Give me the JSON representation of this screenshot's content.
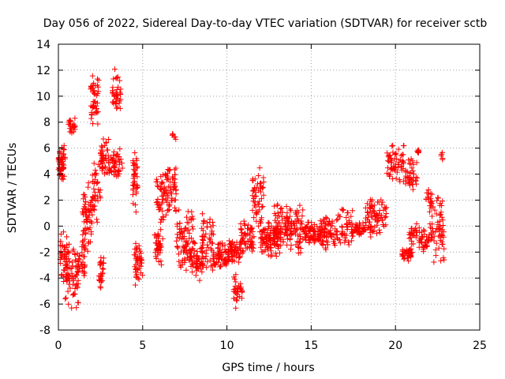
{
  "chart_data": {
    "type": "scatter",
    "title": "Day 056 of 2022, Sidereal Day-to-day VTEC variation (SDTVAR) for receiver sctb",
    "xlabel": "GPS time / hours",
    "ylabel": "SDTVAR / TECUs",
    "xlim": [
      0,
      25
    ],
    "ylim": [
      -8,
      14
    ],
    "xticks": [
      0,
      5,
      10,
      15,
      20,
      25
    ],
    "yticks": [
      -8,
      -6,
      -4,
      -2,
      0,
      2,
      4,
      6,
      8,
      10,
      12,
      14
    ],
    "grid": true,
    "grid_style": "dotted",
    "marker": "+",
    "color": "#ff0000",
    "clusters": [
      {
        "x_range": [
          0.0,
          0.4
        ],
        "y_range": [
          3.5,
          6.3
        ],
        "n": 60
      },
      {
        "x_range": [
          0.1,
          0.5
        ],
        "y_range": [
          -5.0,
          0.0
        ],
        "n": 40
      },
      {
        "x_range": [
          0.4,
          1.2
        ],
        "y_range": [
          -6.5,
          -1.0
        ],
        "n": 70
      },
      {
        "x_range": [
          0.6,
          1.0
        ],
        "y_range": [
          7.0,
          8.5
        ],
        "n": 25
      },
      {
        "x_range": [
          1.0,
          1.6
        ],
        "y_range": [
          -4.0,
          -1.0
        ],
        "n": 35
      },
      {
        "x_range": [
          1.4,
          2.0
        ],
        "y_range": [
          -2.0,
          3.5
        ],
        "n": 60
      },
      {
        "x_range": [
          1.9,
          2.4
        ],
        "y_range": [
          7.0,
          12.0
        ],
        "n": 45
      },
      {
        "x_range": [
          2.0,
          2.5
        ],
        "y_range": [
          0.0,
          6.5
        ],
        "n": 40
      },
      {
        "x_range": [
          2.4,
          2.7
        ],
        "y_range": [
          -5.0,
          -2.0
        ],
        "n": 25
      },
      {
        "x_range": [
          2.5,
          3.0
        ],
        "y_range": [
          3.5,
          7.0
        ],
        "n": 40
      },
      {
        "x_range": [
          3.0,
          3.8
        ],
        "y_range": [
          3.5,
          6.0
        ],
        "n": 50
      },
      {
        "x_range": [
          3.2,
          3.7
        ],
        "y_range": [
          8.0,
          12.3
        ],
        "n": 40
      },
      {
        "x_range": [
          4.4,
          4.7
        ],
        "y_range": [
          1.0,
          6.5
        ],
        "n": 40
      },
      {
        "x_range": [
          4.5,
          5.0
        ],
        "y_range": [
          -4.8,
          -1.0
        ],
        "n": 45
      },
      {
        "x_range": [
          5.7,
          6.2
        ],
        "y_range": [
          -3.5,
          0.0
        ],
        "n": 40
      },
      {
        "x_range": [
          5.8,
          6.4
        ],
        "y_range": [
          -0.5,
          4.5
        ],
        "n": 45
      },
      {
        "x_range": [
          6.3,
          7.0
        ],
        "y_range": [
          0.5,
          4.8
        ],
        "n": 55
      },
      {
        "x_range": [
          6.7,
          7.0
        ],
        "y_range": [
          6.5,
          7.3
        ],
        "n": 6
      },
      {
        "x_range": [
          7.0,
          8.0
        ],
        "y_range": [
          -3.5,
          1.5
        ],
        "n": 80
      },
      {
        "x_range": [
          7.8,
          8.6
        ],
        "y_range": [
          -4.5,
          -1.0
        ],
        "n": 55
      },
      {
        "x_range": [
          8.5,
          9.2
        ],
        "y_range": [
          -3.5,
          1.0
        ],
        "n": 55
      },
      {
        "x_range": [
          9.2,
          10.0
        ],
        "y_range": [
          -3.5,
          -1.0
        ],
        "n": 60
      },
      {
        "x_range": [
          10.0,
          10.8
        ],
        "y_range": [
          -3.0,
          -1.0
        ],
        "n": 60
      },
      {
        "x_range": [
          10.4,
          10.9
        ],
        "y_range": [
          -6.5,
          -3.5
        ],
        "n": 35
      },
      {
        "x_range": [
          10.8,
          11.6
        ],
        "y_range": [
          -2.5,
          0.5
        ],
        "n": 60
      },
      {
        "x_range": [
          11.5,
          12.2
        ],
        "y_range": [
          -1.0,
          5.0
        ],
        "n": 55
      },
      {
        "x_range": [
          12.0,
          13.0
        ],
        "y_range": [
          -2.5,
          0.5
        ],
        "n": 90
      },
      {
        "x_range": [
          12.8,
          14.5
        ],
        "y_range": [
          -2.5,
          2.0
        ],
        "n": 140
      },
      {
        "x_range": [
          14.5,
          15.5
        ],
        "y_range": [
          -1.5,
          0.5
        ],
        "n": 70
      },
      {
        "x_range": [
          15.5,
          16.5
        ],
        "y_range": [
          -2.0,
          1.0
        ],
        "n": 70
      },
      {
        "x_range": [
          16.5,
          17.5
        ],
        "y_range": [
          -2.0,
          1.5
        ],
        "n": 55
      },
      {
        "x_range": [
          17.5,
          18.2
        ],
        "y_range": [
          -1.0,
          0.5
        ],
        "n": 35
      },
      {
        "x_range": [
          18.2,
          19.5
        ],
        "y_range": [
          -1.0,
          2.5
        ],
        "n": 80
      },
      {
        "x_range": [
          19.5,
          20.5
        ],
        "y_range": [
          3.0,
          6.5
        ],
        "n": 60
      },
      {
        "x_range": [
          20.4,
          21.0
        ],
        "y_range": [
          -2.8,
          -1.5
        ],
        "n": 35
      },
      {
        "x_range": [
          20.5,
          21.3
        ],
        "y_range": [
          2.5,
          5.5
        ],
        "n": 40
      },
      {
        "x_range": [
          20.8,
          21.3
        ],
        "y_range": [
          -1.5,
          0.5
        ],
        "n": 25
      },
      {
        "x_range": [
          21.2,
          21.4
        ],
        "y_range": [
          5.5,
          6.0
        ],
        "n": 8
      },
      {
        "x_range": [
          21.4,
          22.0
        ],
        "y_range": [
          -2.0,
          0.0
        ],
        "n": 35
      },
      {
        "x_range": [
          21.8,
          22.2
        ],
        "y_range": [
          1.5,
          3.0
        ],
        "n": 15
      },
      {
        "x_range": [
          22.0,
          22.9
        ],
        "y_range": [
          -3.0,
          3.0
        ],
        "n": 70
      },
      {
        "x_range": [
          22.7,
          22.9
        ],
        "y_range": [
          5.0,
          5.8
        ],
        "n": 5
      }
    ]
  }
}
